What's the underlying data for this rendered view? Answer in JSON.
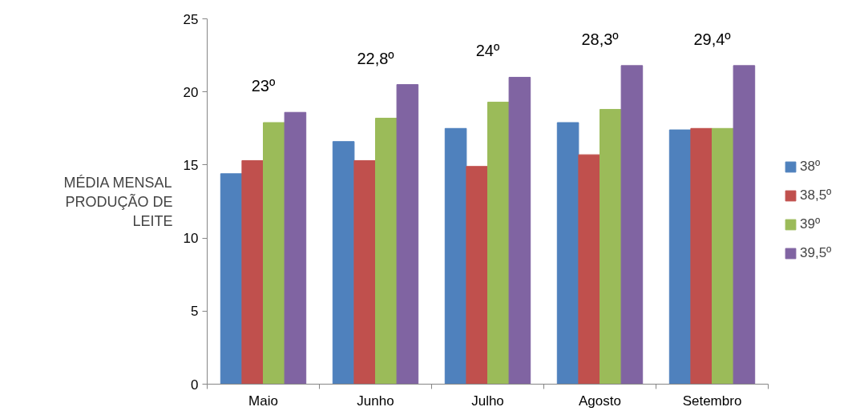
{
  "chart_data": {
    "type": "bar",
    "ylabel": "MÉDIA MENSAL PRODUÇÃO DE LEITE",
    "categories": [
      "Maio",
      "Junho",
      "Julho",
      "Agosto",
      "Setembro"
    ],
    "series": [
      {
        "name": "38º",
        "color": "#4f81bd",
        "values": [
          14.4,
          16.6,
          17.5,
          17.9,
          17.4
        ]
      },
      {
        "name": "38,5º",
        "color": "#c0504d",
        "values": [
          15.3,
          15.3,
          14.9,
          15.7,
          17.5
        ]
      },
      {
        "name": "39º",
        "color": "#9bbb59",
        "values": [
          17.9,
          18.2,
          19.3,
          18.8,
          17.5
        ]
      },
      {
        "name": "39,5º",
        "color": "#8064a2",
        "values": [
          18.6,
          20.5,
          21.0,
          21.8,
          21.8
        ]
      }
    ],
    "annotations": [
      "23º",
      "22,8º",
      "24º",
      "28,3º",
      "29,4º"
    ],
    "ylim": [
      0,
      25
    ],
    "yticks": [
      0,
      5,
      10,
      15,
      20,
      25
    ],
    "grid": false,
    "legend": "right"
  }
}
